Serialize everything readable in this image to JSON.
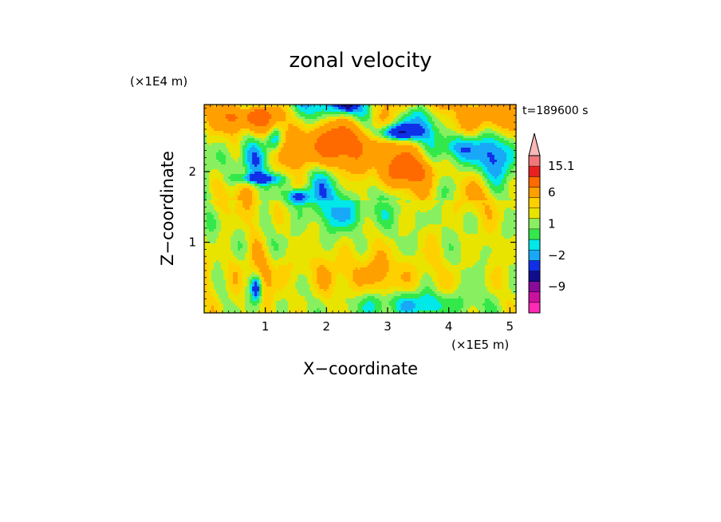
{
  "chart_data": {
    "type": "heatmap",
    "title": "zonal velocity",
    "xlabel": "X−coordinate",
    "ylabel": "Z−coordinate",
    "x_unit": "(×1E5 m)",
    "y_unit": "(×1E4 m)",
    "time_label": "t=189600 s",
    "xlim": [
      0,
      5.1
    ],
    "ylim": [
      0,
      2.95
    ],
    "x_ticks": [
      1,
      2,
      3,
      4,
      5
    ],
    "x_tick_labels": [
      "1",
      "2",
      "3",
      "4",
      "5"
    ],
    "y_ticks": [
      1,
      2
    ],
    "y_tick_labels": [
      "1",
      "2"
    ],
    "colorbar": {
      "levels": [
        -15,
        -12,
        -9,
        -6,
        -3,
        -2,
        -1,
        0,
        1,
        2,
        3,
        6,
        9,
        12,
        15.1
      ],
      "labels": [
        {
          "value": "15.1",
          "at": 15.1
        },
        {
          "value": "6",
          "at": 6
        },
        {
          "value": "1",
          "at": 1
        },
        {
          "value": "−2",
          "at": -2
        },
        {
          "value": "−9",
          "at": -9
        }
      ],
      "colors": [
        "#ff2ab4",
        "#cc109e",
        "#8a0a9a",
        "#0e0e8c",
        "#1030e8",
        "#19a8f8",
        "#00e8e8",
        "#33e84a",
        "#88f060",
        "#e8e400",
        "#ffd000",
        "#ffa000",
        "#ff6a00",
        "#e82020",
        "#f07878",
        "#f8b8b8"
      ],
      "extend": "max"
    }
  }
}
